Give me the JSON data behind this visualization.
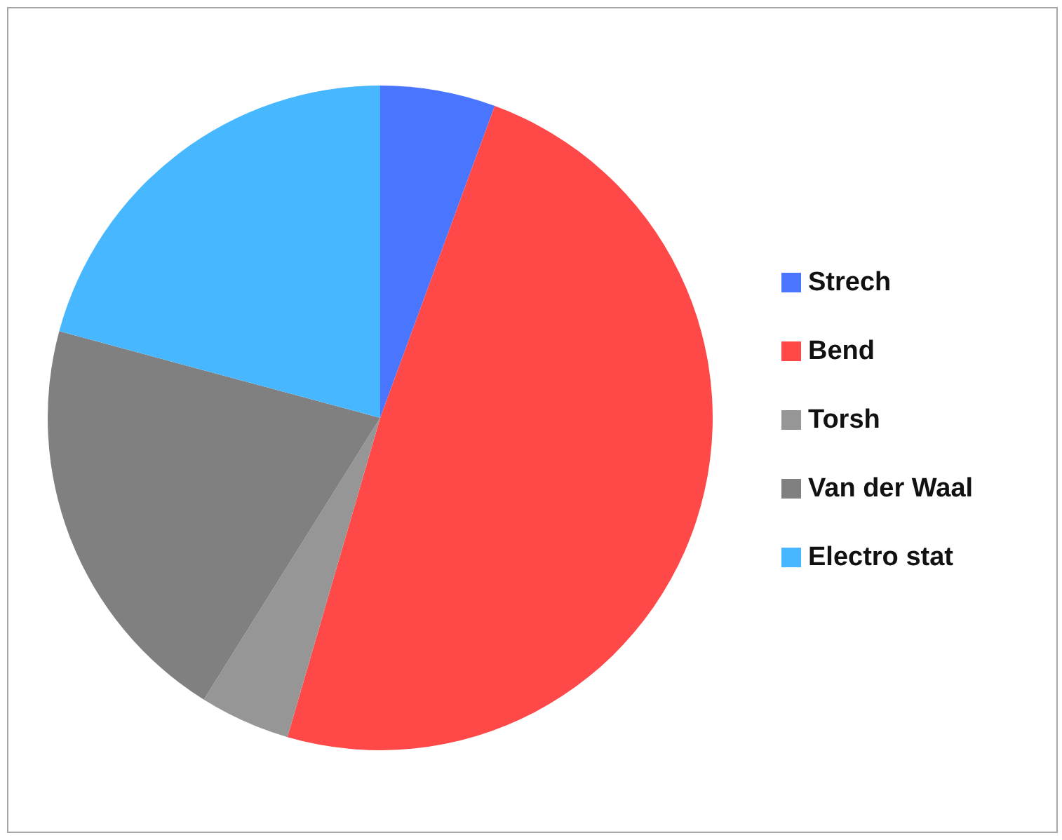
{
  "chart_data": {
    "type": "pie",
    "categories": [
      "Strech",
      "Bend",
      "Torsh",
      "Van der Waal",
      "Electro stat"
    ],
    "values": [
      5.6,
      48.9,
      4.4,
      20.3,
      20.8
    ],
    "colors": [
      "#4a76ff",
      "#ff4848",
      "#969696",
      "#808080",
      "#47b8ff"
    ],
    "legend": "right"
  }
}
